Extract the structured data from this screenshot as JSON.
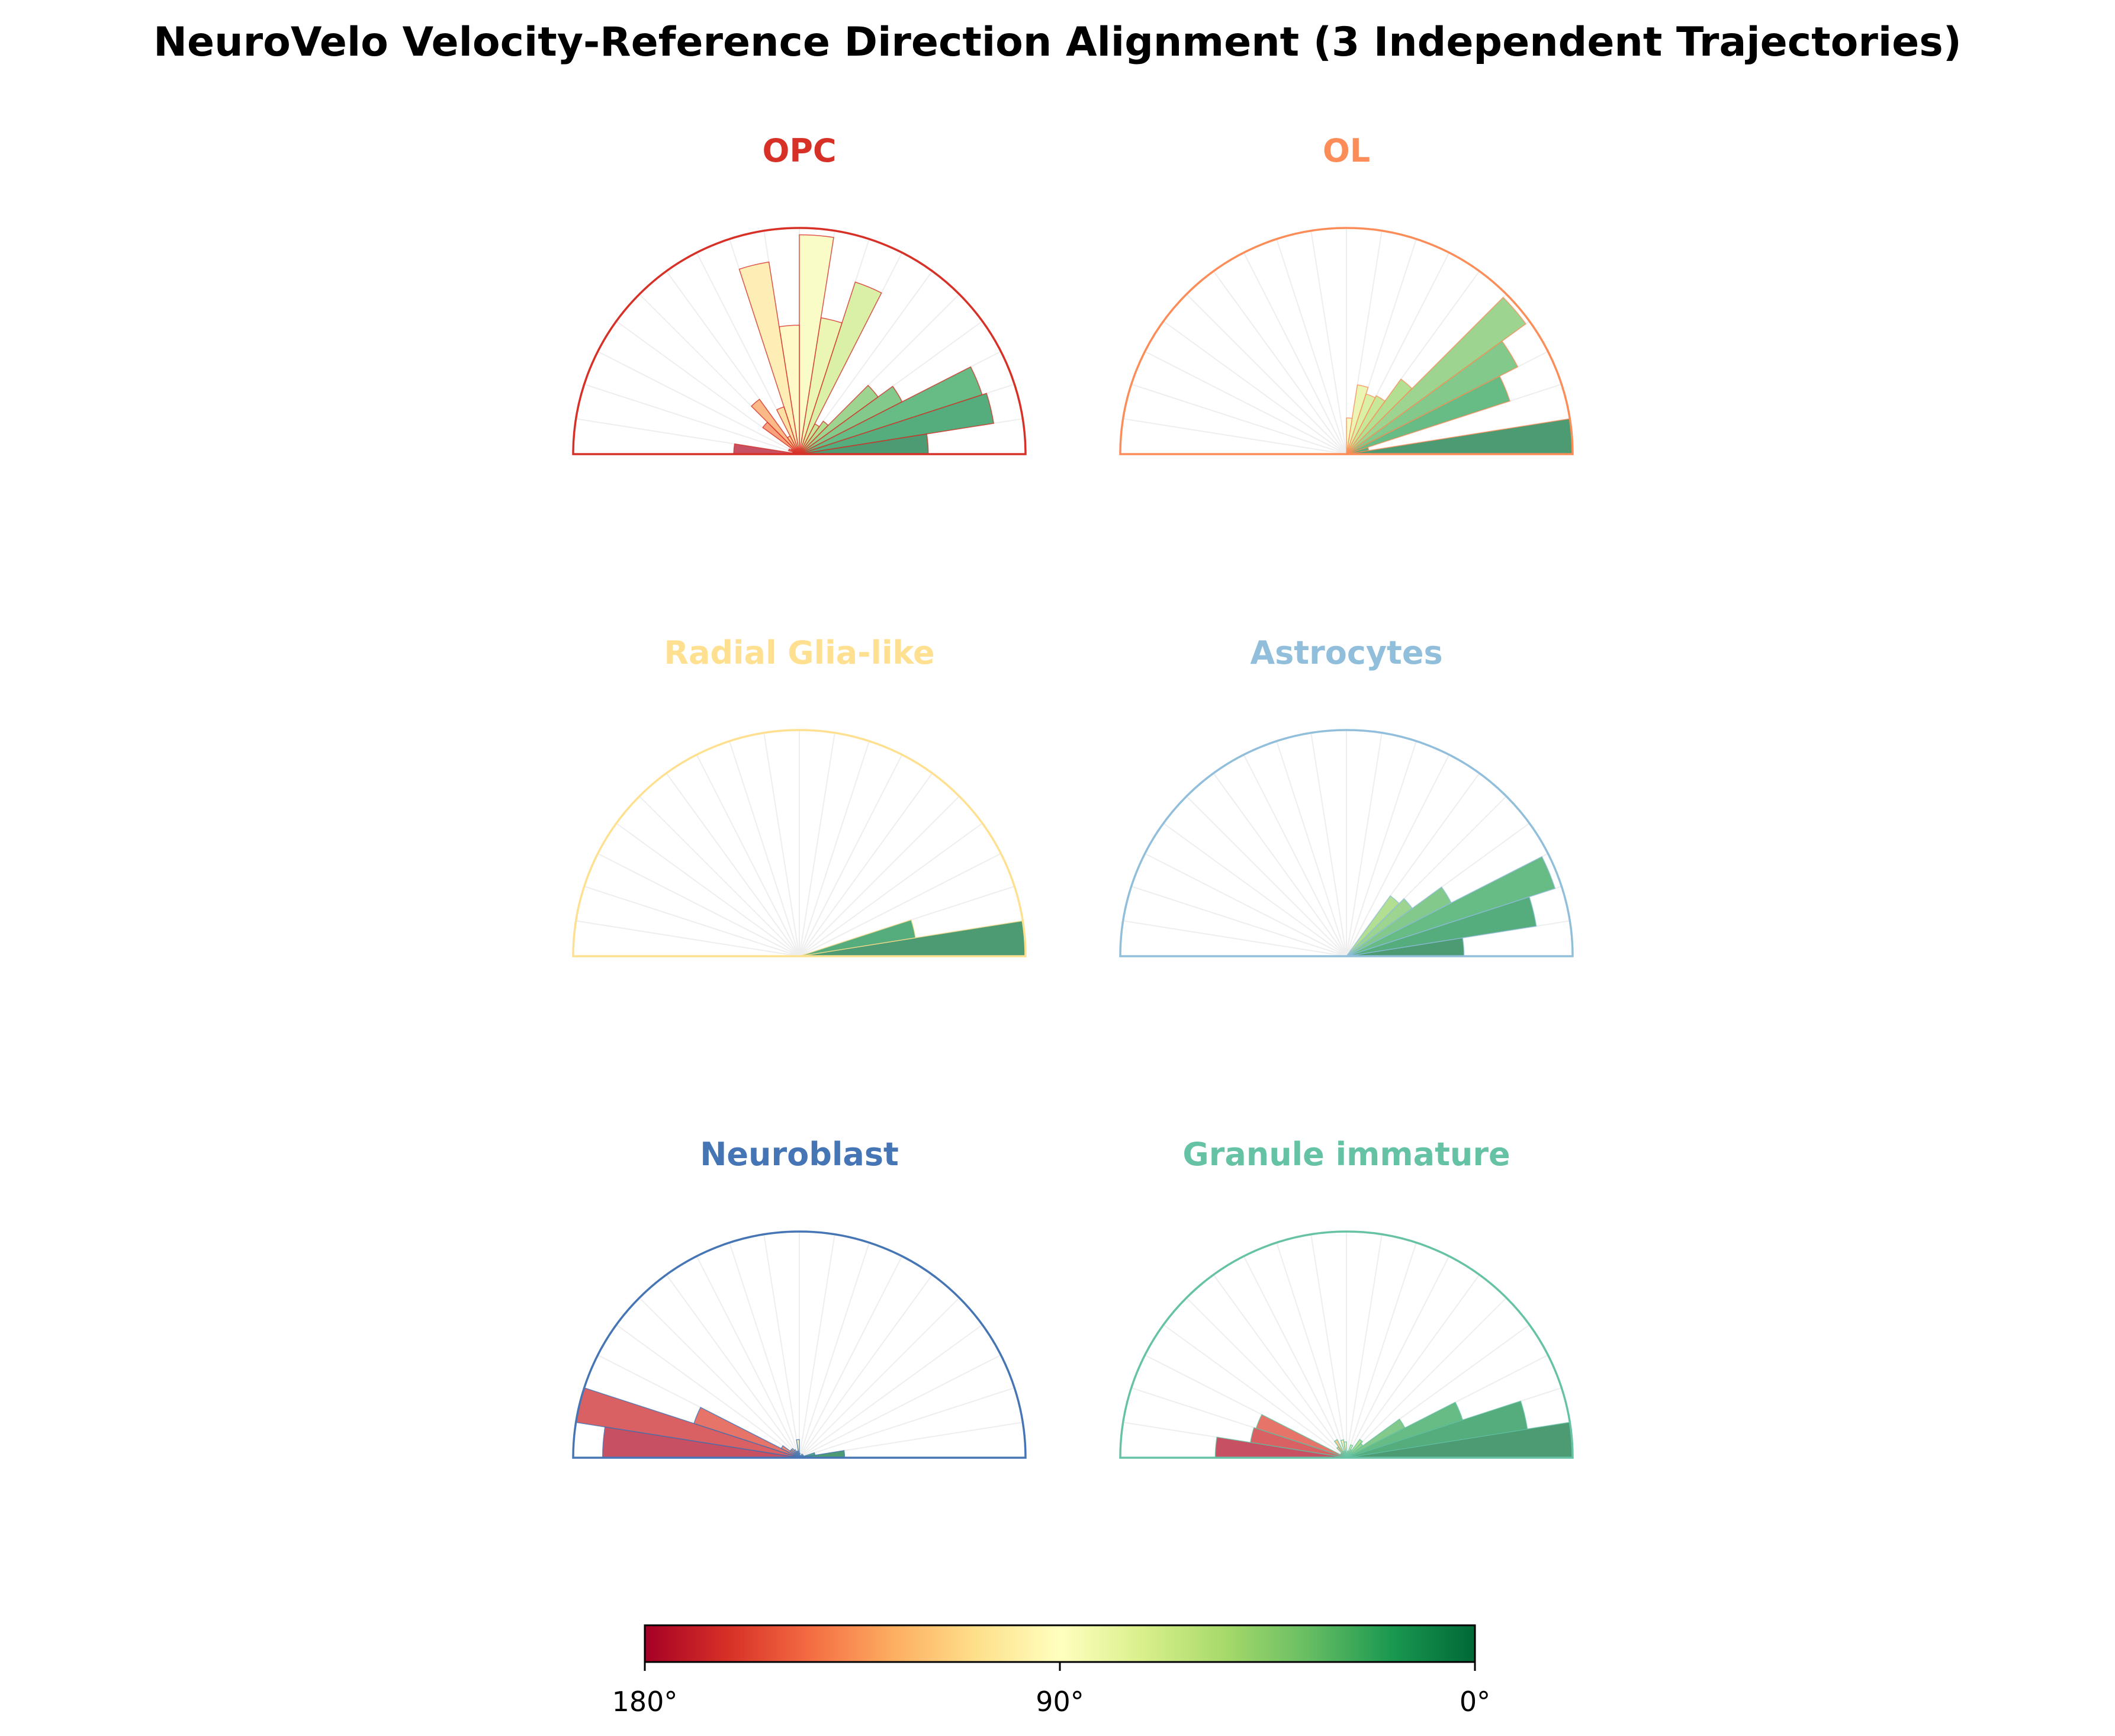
{
  "chart_data": {
    "type": "polar-bar",
    "title": "NeuroVelo Velocity-Reference Direction Alignment (3 Independent Trajectories)",
    "angle_range_deg": [
      0,
      180
    ],
    "bin_width_deg": 9,
    "angle_unit": "deg",
    "grid": true,
    "panels": [
      {
        "name": "OPC",
        "color": "#d73027",
        "counts": [
          0.57,
          0.87,
          0.85,
          0.51,
          0.43,
          0.18,
          0.15,
          0.8,
          0.61,
          0.97,
          0.57,
          0.86,
          0.22,
          0.09,
          0.3,
          0.2,
          0.04,
          0.05,
          0.03,
          0.29
        ]
      },
      {
        "name": "OL",
        "color": "#fc8d59",
        "counts": [
          1.0,
          0.1,
          0.76,
          0.85,
          0.98,
          0.41,
          0.29,
          0.28,
          0.31,
          0.16,
          0.0,
          0.0,
          0.0,
          0.0,
          0.0,
          0.0,
          0.0,
          0.0,
          0.0,
          0.0
        ]
      },
      {
        "name": "Radial Glia-like",
        "color": "#fee090",
        "counts": [
          1.0,
          0.52,
          0.0,
          0.0,
          0.0,
          0.0,
          0.0,
          0.0,
          0.0,
          0.0,
          0.0,
          0.0,
          0.0,
          0.0,
          0.0,
          0.0,
          0.0,
          0.0,
          0.0,
          0.0
        ]
      },
      {
        "name": "Astrocytes",
        "color": "#91bfdb",
        "counts": [
          0.52,
          0.85,
          0.97,
          0.52,
          0.36,
          0.33,
          0.0,
          0.0,
          0.0,
          0.0,
          0.0,
          0.0,
          0.0,
          0.0,
          0.0,
          0.0,
          0.0,
          0.0,
          0.0,
          0.0
        ]
      },
      {
        "name": "Neuroblast",
        "color": "#4575b4",
        "counts": [
          0.2,
          0.07,
          0.02,
          0.02,
          0.01,
          0.02,
          0.01,
          0.01,
          0.01,
          0.02,
          0.08,
          0.03,
          0.03,
          0.04,
          0.05,
          0.05,
          0.09,
          0.49,
          1.0,
          0.87
        ]
      },
      {
        "name": "Granule immature",
        "color": "#66c2a5",
        "counts": [
          1.0,
          0.81,
          0.54,
          0.29,
          0.09,
          0.1,
          0.04,
          0.06,
          0.03,
          0.02,
          0.07,
          0.08,
          0.03,
          0.09,
          0.06,
          0.03,
          0.03,
          0.42,
          0.43,
          0.58
        ]
      }
    ],
    "colorbar": {
      "colormap": "RdYlGn",
      "ticks": [
        "180°",
        "90°",
        "0°"
      ],
      "range_deg": [
        180,
        0
      ]
    }
  }
}
